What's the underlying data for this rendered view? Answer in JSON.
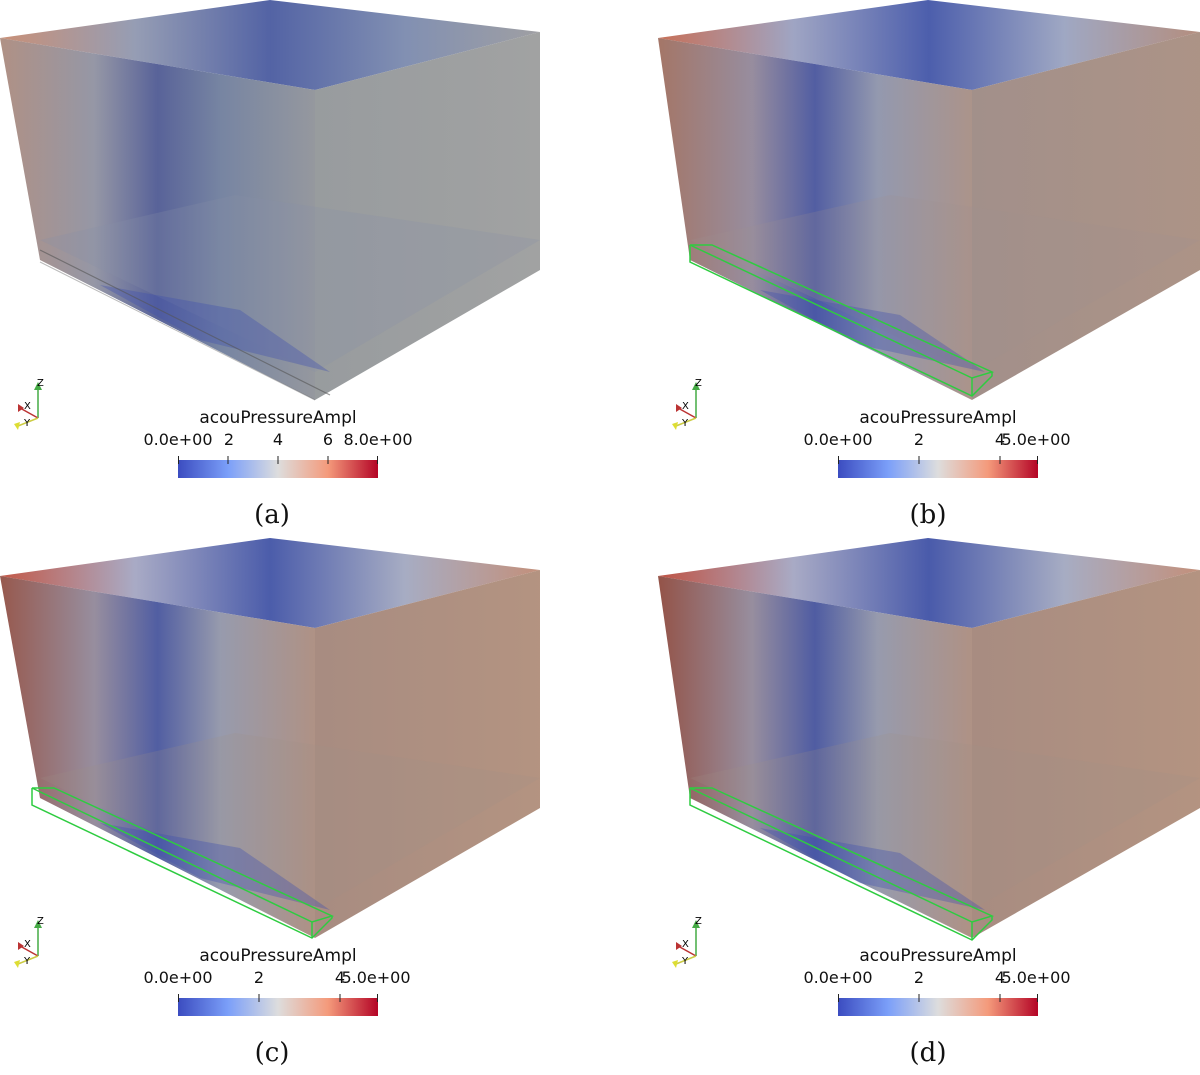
{
  "colors": {
    "blue": "#3b4cc0",
    "white": "#dddddd",
    "red": "#b40426",
    "inlet_outline": "#2ecc40"
  },
  "panels": [
    {
      "caption": "(a)",
      "colorbar_title": "acouPressureAmpl",
      "ticks": [
        "0.0e+00",
        "2",
        "4",
        "6",
        "8.0e+00"
      ],
      "axis_labels": {
        "z": "Z",
        "x": "X",
        "y": "Y"
      },
      "inlet_highlight": false,
      "tint": "gray"
    },
    {
      "caption": "(b)",
      "colorbar_title": "acouPressureAmpl",
      "ticks": [
        "0.0e+00",
        "2",
        "4",
        "5.0e+00"
      ],
      "axis_labels": {
        "z": "Z",
        "x": "X",
        "y": "Y"
      },
      "inlet_highlight": true,
      "tint": "warm"
    },
    {
      "caption": "(c)",
      "colorbar_title": "acouPressureAmpl",
      "ticks": [
        "0.0e+00",
        "2",
        "4",
        "5.0e+00"
      ],
      "axis_labels": {
        "z": "Z",
        "x": "X",
        "y": "Y"
      },
      "inlet_highlight": true,
      "tint": "warm"
    },
    {
      "caption": "(d)",
      "colorbar_title": "acouPressureAmpl",
      "ticks": [
        "0.0e+00",
        "2",
        "4",
        "5.0e+00"
      ],
      "axis_labels": {
        "z": "Z",
        "x": "X",
        "y": "Y"
      },
      "inlet_highlight": true,
      "tint": "warm"
    }
  ]
}
